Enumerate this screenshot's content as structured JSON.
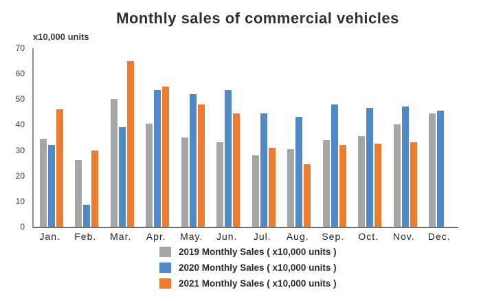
{
  "title": "Monthly sales of commercial vehicles",
  "y_axis_units_label": "x10,000 units",
  "chart_data": {
    "type": "bar",
    "title": "Monthly sales of commercial vehicles",
    "xlabel": "",
    "ylabel": "x10,000 units",
    "categories": [
      "Jan.",
      "Feb.",
      "Mar.",
      "Apr.",
      "May.",
      "Jun.",
      "Jul.",
      "Aug.",
      "Sep.",
      "Oct.",
      "Nov.",
      "Dec."
    ],
    "series": [
      {
        "name": "2019 Monthly Sales ( x10,000 units )",
        "color": "#a6a6a6",
        "values": [
          34.5,
          26,
          50,
          40.5,
          35,
          33,
          28,
          30.5,
          34,
          35.5,
          40,
          44.5
        ]
      },
      {
        "name": "2020 Monthly Sales ( x10,000 units )",
        "color": "#5089c5",
        "values": [
          32,
          8.5,
          39,
          53.5,
          52,
          53.5,
          44.5,
          43,
          48,
          46.5,
          47,
          45.5
        ]
      },
      {
        "name": "2021 Monthly Sales ( x10,000 units )",
        "color": "#ed7d31",
        "values": [
          46,
          30,
          65,
          55,
          48,
          44.5,
          31,
          24.5,
          32,
          32.5,
          33,
          null
        ]
      }
    ],
    "ylim": [
      0,
      70
    ],
    "yticks": [
      0,
      10,
      20,
      30,
      40,
      50,
      60,
      70
    ],
    "grid": false,
    "legend_position": "bottom"
  },
  "style": {
    "background": "#ffffff",
    "title_color": "#362d2b",
    "axis_color": "#6e6e6e",
    "tick_label_color": "#3a3a3a",
    "series_colors": [
      "#a6a6a6",
      "#5089c5",
      "#ed7d31"
    ]
  }
}
